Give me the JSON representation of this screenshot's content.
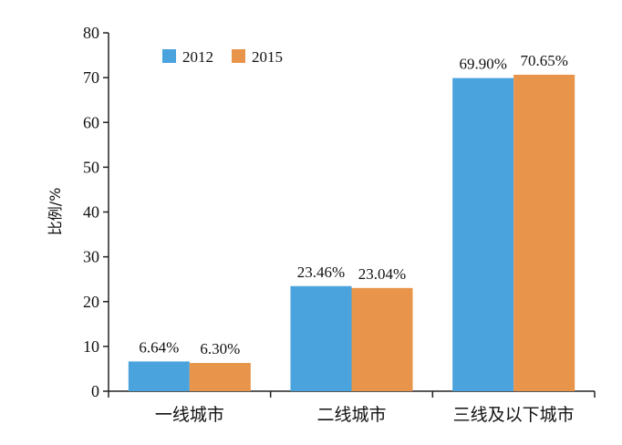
{
  "chart_data": {
    "type": "bar",
    "categories": [
      "一线城市",
      "二线城市",
      "三线及以下城市"
    ],
    "series": [
      {
        "name": "2012",
        "values": [
          6.64,
          23.46,
          69.9
        ],
        "labels": [
          "6.64%",
          "23.46%",
          "69.90%"
        ],
        "color": "#4aa3dc"
      },
      {
        "name": "2015",
        "values": [
          6.3,
          23.04,
          70.65
        ],
        "labels": [
          "6.30%",
          "23.04%",
          "70.65%"
        ],
        "color": "#e8944a"
      }
    ],
    "ylabel": "比例/%",
    "xlabel": "",
    "ylim": [
      0,
      80
    ],
    "yticks": [
      "0",
      "10",
      "20",
      "30",
      "40",
      "50",
      "60",
      "70",
      "80"
    ],
    "grid": false,
    "legend": "top-left"
  }
}
